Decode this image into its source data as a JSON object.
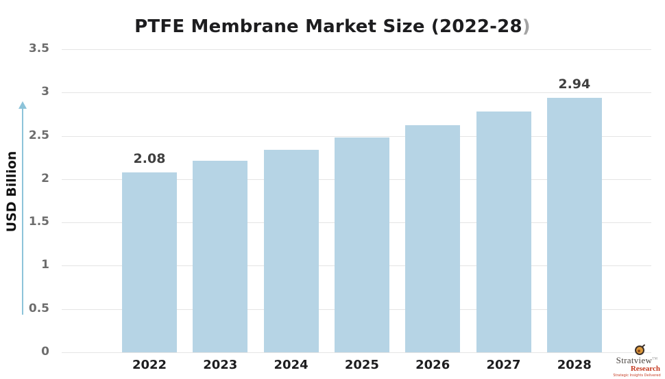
{
  "title": {
    "main": "PTFE Membrane Market Size (2022-28",
    "suffix": ")"
  },
  "y_axis": {
    "label": "USD Billion",
    "ticks": [
      "3.5",
      "3",
      "2.5",
      "2",
      "1.5",
      "1",
      "0.5",
      "0"
    ]
  },
  "chart_data": {
    "type": "bar",
    "title": "PTFE Membrane Market Size (2022-28)",
    "categories": [
      "2022",
      "2023",
      "2024",
      "2025",
      "2026",
      "2027",
      "2028"
    ],
    "values": [
      2.08,
      2.21,
      2.34,
      2.48,
      2.62,
      2.78,
      2.94
    ],
    "data_labels": [
      "2.08",
      null,
      null,
      null,
      null,
      null,
      "2.94"
    ],
    "xlabel": "",
    "ylabel": "USD Billion",
    "ylim": [
      0,
      3.5
    ],
    "yticks": [
      3.5,
      3,
      2.5,
      2,
      1.5,
      1,
      0.5,
      0
    ],
    "grid": true,
    "legend": false,
    "bar_color": "#b6d4e5"
  },
  "colors": {
    "bar": "#b6d4e5",
    "arrow": "#8cc3d9",
    "gridline": "#e4e4e4",
    "title_text": "#1d1d1f",
    "title_paren": "#a3a3a3",
    "y_tick_text": "#6d6d6d",
    "x_tick_text": "#1d1d1f",
    "value_label_text": "#3f3f3f",
    "logo_red": "#c63b22"
  },
  "logo": {
    "brand": "Stratview",
    "trademark": "TM",
    "sub_brand": "Research",
    "tagline": "Strategic Insights Delivered"
  }
}
